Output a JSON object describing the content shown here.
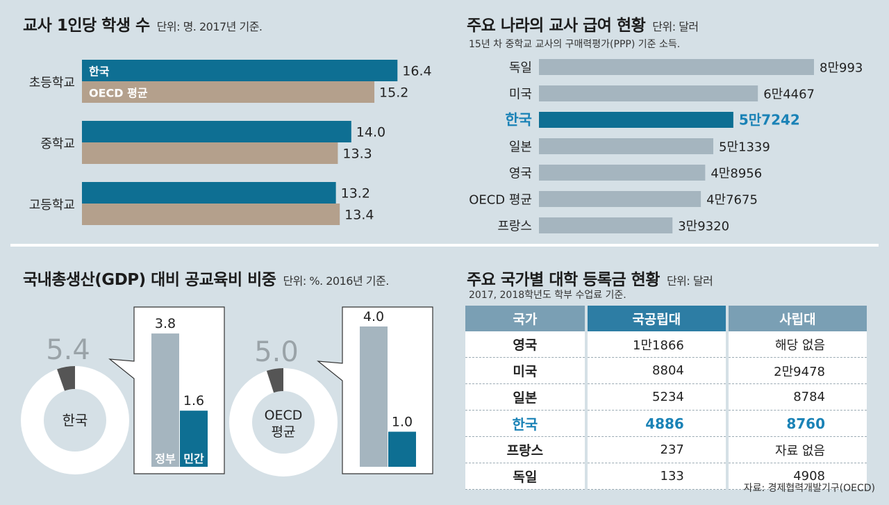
{
  "colors": {
    "korea": "#0e6f93",
    "oecd": "#b4a08c",
    "grey_bar": "#a5b5bf",
    "korea_text": "#1a82b6",
    "donut_slice": "#555555",
    "bg": "#d5e0e6"
  },
  "students": {
    "title": "교사 1인당 학생 수",
    "unit": "단위: 명. 2017년 기준.",
    "series_labels": {
      "korea": "한국",
      "oecd": "OECD 평균"
    }
  },
  "salary": {
    "title": "주요 나라의 교사 급여 현황",
    "unit": "단위: 달러",
    "sub": "15년 차 중학교 교사의 구매력평가(PPP) 기준 소득."
  },
  "gdp": {
    "title": "국내총생산(GDP) 대비 공교육비 비중",
    "unit": "단위: %. 2016년 기준.",
    "gov_label": "정부",
    "private_label": "민간"
  },
  "tuition": {
    "title": "주요 국가별 대학 등록금 현황",
    "unit": "단위: 달러",
    "sub": "2017, 2018학년도 학부 수업료 기준.",
    "headers": [
      "국가",
      "국공립대",
      "사립대"
    ],
    "rows": [
      [
        "영국",
        "1만1866",
        "해당 없음"
      ],
      [
        "미국",
        "8804",
        "2만9478"
      ],
      [
        "일본",
        "5234",
        "8784"
      ],
      [
        "한국",
        "4886",
        "8760"
      ],
      [
        "프랑스",
        "237",
        "자료 없음"
      ],
      [
        "독일",
        "133",
        "4908"
      ]
    ],
    "highlight_row": 3,
    "source": "자료: 경제협력개발기구(OECD)"
  },
  "chart_data": [
    {
      "type": "bar",
      "title": "교사 1인당 학생 수",
      "categories": [
        "초등학교",
        "중학교",
        "고등학교"
      ],
      "series": [
        {
          "name": "한국",
          "values": [
            16.4,
            14.0,
            13.2
          ],
          "labels": [
            "16.4",
            "14.0",
            "13.2"
          ]
        },
        {
          "name": "OECD 평균",
          "values": [
            15.2,
            13.3,
            13.4
          ],
          "labels": [
            "15.2",
            "13.3",
            "13.4"
          ]
        }
      ],
      "orientation": "horizontal"
    },
    {
      "type": "bar",
      "title": "주요 나라의 교사 급여 현황",
      "categories": [
        "독일",
        "미국",
        "한국",
        "일본",
        "영국",
        "OECD 평균",
        "프랑스"
      ],
      "values": [
        80993,
        64467,
        57242,
        51339,
        48956,
        47675,
        39320
      ],
      "labels": [
        "8만993",
        "6만4467",
        "5만7242",
        "5만1339",
        "4만8956",
        "4만7675",
        "3만9320"
      ],
      "highlight": "한국",
      "orientation": "horizontal"
    },
    {
      "type": "pie",
      "title": "국내총생산(GDP) 대비 공교육비 비중",
      "groups": [
        {
          "name": "한국",
          "total": 5.4,
          "total_label": "5.4",
          "gov": 3.8,
          "gov_label": "3.8",
          "private": 1.6,
          "private_label": "1.6"
        },
        {
          "name": "OECD 평균",
          "total": 5.0,
          "total_label": "5.0",
          "gov": 4.0,
          "gov_label": "4.0",
          "private": 1.0,
          "private_label": "1.0"
        }
      ]
    }
  ]
}
